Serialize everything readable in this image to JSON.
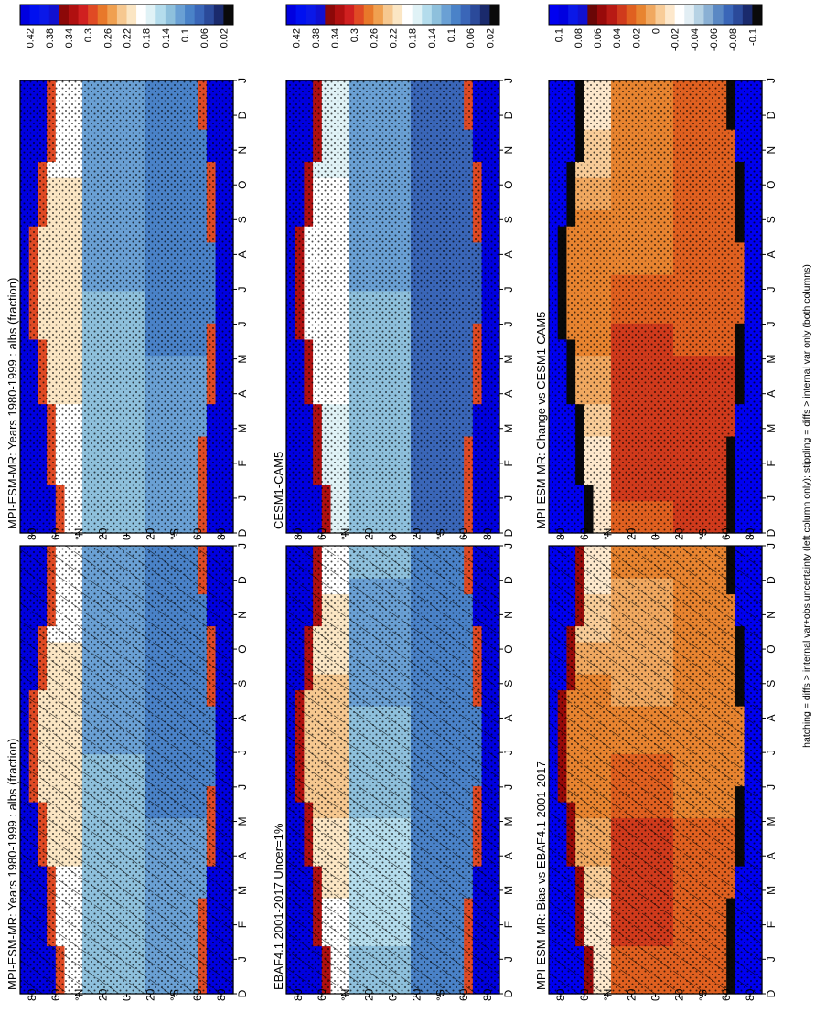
{
  "figure": {
    "caption": "hatching = diffs > internal var+obs uncertainty (left column only); stippling = diffs > internal var only (both columns)"
  },
  "chart_data": [
    {
      "type": "heatmap",
      "title": "MPI-ESM-MR: Years 1980-1999 : albs (fraction)",
      "overlay": "hatching+stippling",
      "palette": "abs",
      "colorbar_ticks": [
        "0.42",
        "0.38",
        "0.34",
        "0.3",
        "0.26",
        "0.22",
        "0.18",
        "0.14",
        "0.1",
        "0.06",
        "0.02"
      ],
      "colorbar_range": [
        0.0,
        0.44
      ],
      "x_ticks": [
        "D",
        "J",
        "F",
        "M",
        "A",
        "M",
        "J",
        "J",
        "A",
        "S",
        "O",
        "N",
        "D",
        "J"
      ],
      "y_ticks": [
        "80",
        "60",
        "N",
        "20",
        "0",
        "20",
        "S",
        "60",
        "80"
      ],
      "y_suffix": "°",
      "field": {
        "polar_n": 0.43,
        "edge_n": 0.3,
        "sub_n": 0.2,
        "trop": 0.12,
        "sub_s": 0.1,
        "ice_s": 0.42,
        "edge_s": 0.3
      }
    },
    {
      "type": "heatmap",
      "title": "MPI-ESM-MR: Years 1980-1999 : albs (fraction)",
      "overlay": "stippling",
      "palette": "abs",
      "colorbar_ticks": [
        "0.42",
        "0.38",
        "0.34",
        "0.3",
        "0.26",
        "0.22",
        "0.18",
        "0.14",
        "0.1",
        "0.06",
        "0.02"
      ],
      "colorbar_range": [
        0.0,
        0.44
      ],
      "x_ticks": [
        "D",
        "J",
        "F",
        "M",
        "A",
        "M",
        "J",
        "J",
        "A",
        "S",
        "O",
        "N",
        "D",
        "J"
      ],
      "y_ticks": [
        "80",
        "60",
        "N",
        "20",
        "0",
        "20",
        "S",
        "60",
        "80"
      ],
      "y_suffix": "°",
      "field": {
        "polar_n": 0.43,
        "edge_n": 0.3,
        "sub_n": 0.2,
        "trop": 0.12,
        "sub_s": 0.1,
        "ice_s": 0.42,
        "edge_s": 0.3
      }
    },
    {
      "type": "heatmap",
      "title": "EBAF4.1 2001-2017 Uncer=1%",
      "overlay": "hatching+stippling",
      "palette": "abs",
      "colorbar_ticks": [
        "0.42",
        "0.38",
        "0.34",
        "0.3",
        "0.26",
        "0.22",
        "0.18",
        "0.14",
        "0.1",
        "0.06",
        "0.02"
      ],
      "colorbar_range": [
        0.0,
        0.44
      ],
      "x_ticks": [
        "D",
        "J",
        "F",
        "M",
        "A",
        "M",
        "J",
        "J",
        "A",
        "S",
        "O",
        "N",
        "D",
        "J"
      ],
      "y_ticks": [
        "80",
        "60",
        "N",
        "20",
        "0",
        "20",
        "S",
        "60",
        "80"
      ],
      "y_suffix": "°",
      "field": {
        "polar_n": 0.43,
        "edge_n": 0.33,
        "sub_n": 0.21,
        "trop": 0.13,
        "sub_s": 0.09,
        "ice_s": 0.42,
        "edge_s": 0.28
      }
    },
    {
      "type": "heatmap",
      "title": "CESM1-CAM5",
      "overlay": "stippling",
      "palette": "abs",
      "colorbar_ticks": [
        "0.42",
        "0.38",
        "0.34",
        "0.3",
        "0.26",
        "0.22",
        "0.18",
        "0.14",
        "0.1",
        "0.06",
        "0.02"
      ],
      "colorbar_range": [
        0.0,
        0.44
      ],
      "x_ticks": [
        "D",
        "J",
        "F",
        "M",
        "A",
        "M",
        "J",
        "J",
        "A",
        "S",
        "O",
        "N",
        "D",
        "J"
      ],
      "y_ticks": [
        "80",
        "60",
        "N",
        "20",
        "0",
        "20",
        "S",
        "60",
        "80"
      ],
      "y_suffix": "°",
      "field": {
        "polar_n": 0.43,
        "edge_n": 0.32,
        "sub_n": 0.18,
        "trop": 0.12,
        "sub_s": 0.07,
        "ice_s": 0.42,
        "edge_s": 0.3
      }
    },
    {
      "type": "heatmap",
      "title": "MPI-ESM-MR: Bias vs EBAF4.1 2001-2017",
      "overlay": "hatching+stippling",
      "palette": "diff",
      "colorbar_ticks": [
        "0.1",
        "0.08",
        "0.06",
        "0.04",
        "0.02",
        "0",
        "-0.02",
        "-0.04",
        "-0.06",
        "-0.08",
        "-0.1"
      ],
      "colorbar_range": [
        -0.11,
        0.11
      ],
      "x_ticks": [
        "D",
        "J",
        "F",
        "M",
        "A",
        "M",
        "J",
        "J",
        "A",
        "S",
        "O",
        "N",
        "D",
        "J"
      ],
      "y_ticks": [
        "80",
        "60",
        "N",
        "20",
        "0",
        "20",
        "S",
        "60",
        "80"
      ],
      "y_suffix": "°",
      "field": {
        "polar_n": 0.12,
        "edge_n": 0.05,
        "sub_n": 0.0,
        "trop": 0.02,
        "sub_s": 0.02,
        "ice_s": 0.12,
        "edge_s": -0.12
      }
    },
    {
      "type": "heatmap",
      "title": "MPI-ESM-MR: Change vs CESM1-CAM5",
      "overlay": "stippling",
      "palette": "diff",
      "colorbar_ticks": [
        "0.1",
        "0.08",
        "0.06",
        "0.04",
        "0.02",
        "0",
        "-0.02",
        "-0.04",
        "-0.06",
        "-0.08",
        "-0.1"
      ],
      "colorbar_range": [
        -0.11,
        0.11
      ],
      "x_ticks": [
        "D",
        "J",
        "F",
        "M",
        "A",
        "M",
        "J",
        "J",
        "A",
        "S",
        "O",
        "N",
        "D",
        "J"
      ],
      "y_ticks": [
        "80",
        "60",
        "N",
        "20",
        "0",
        "20",
        "S",
        "60",
        "80"
      ],
      "y_suffix": "°",
      "field": {
        "polar_n": 0.12,
        "edge_n": -0.12,
        "sub_n": 0.0,
        "trop": 0.025,
        "sub_s": 0.03,
        "ice_s": 0.12,
        "edge_s": -0.12
      }
    }
  ]
}
